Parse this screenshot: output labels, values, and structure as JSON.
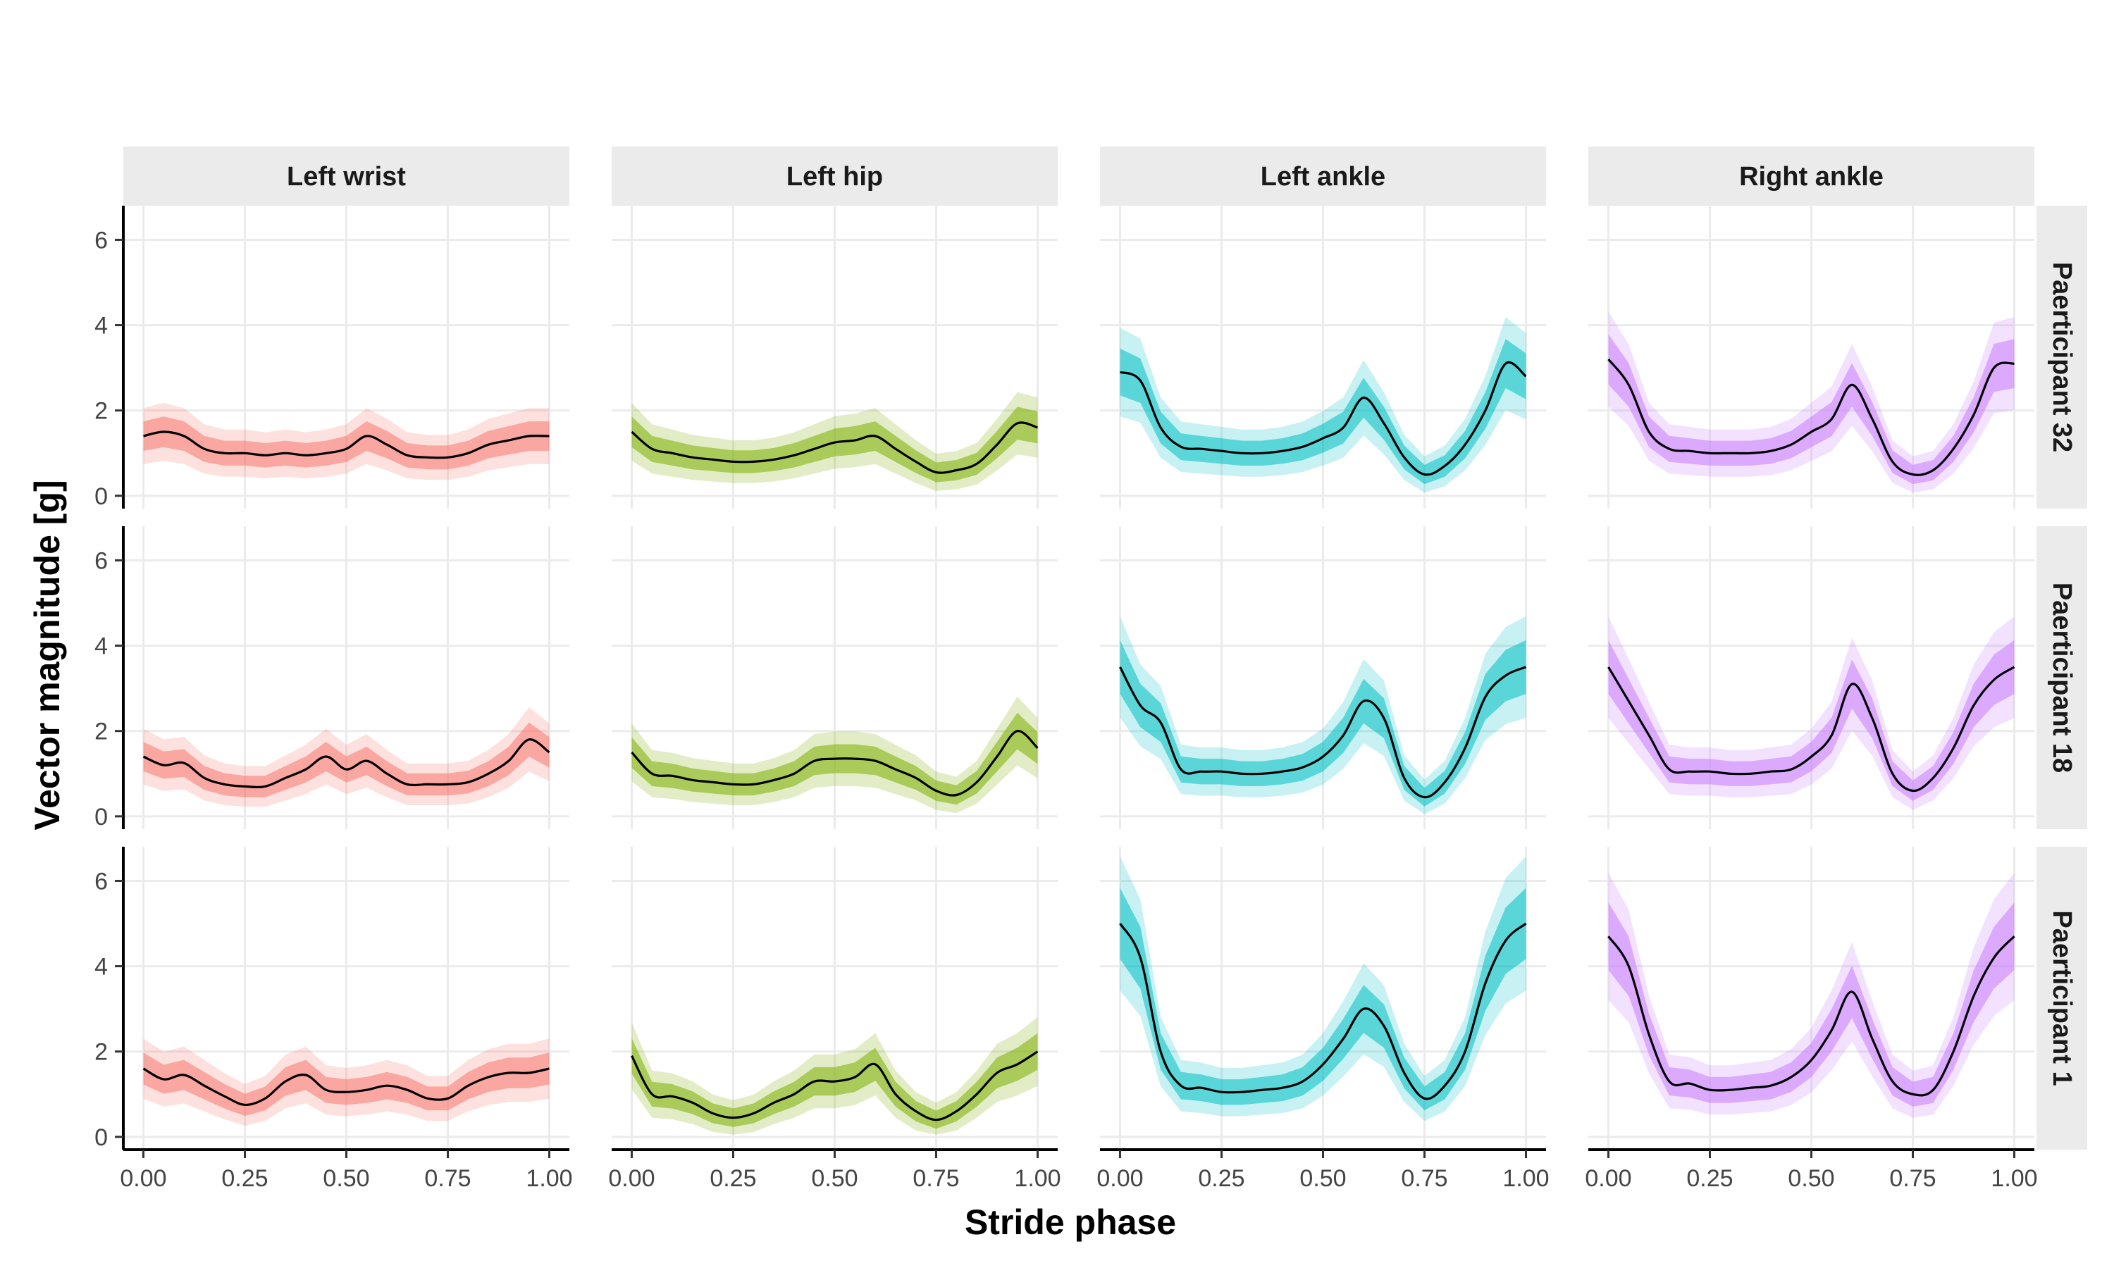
{
  "chart_data": {
    "type": "line",
    "xlabel": "Stride phase",
    "ylabel": "Vector magnitude [g]",
    "xlim": [
      0,
      1
    ],
    "ylim": [
      -0.3,
      6.8
    ],
    "x_ticks": [
      "0.00",
      "0.25",
      "0.50",
      "0.75",
      "1.00"
    ],
    "x_tick_values": [
      0,
      0.25,
      0.5,
      0.75,
      1.0
    ],
    "y_ticks": [
      "0",
      "2",
      "4",
      "6"
    ],
    "y_tick_values": [
      0,
      2,
      4,
      6
    ],
    "grid": true,
    "columns": [
      {
        "name": "Left wrist",
        "color": "#F8766D"
      },
      {
        "name": "Left hip",
        "color": "#7CAE00"
      },
      {
        "name": "Left ankle",
        "color": "#00BFC4"
      },
      {
        "name": "Right ankle",
        "color": "#C77CFF"
      }
    ],
    "rows": [
      "Paerticipant 32",
      "Paerticipant 18",
      "Paerticipant 1"
    ],
    "x": [
      0.0,
      0.05,
      0.1,
      0.15,
      0.2,
      0.25,
      0.3,
      0.35,
      0.4,
      0.45,
      0.5,
      0.55,
      0.6,
      0.65,
      0.7,
      0.75,
      0.8,
      0.85,
      0.9,
      0.95,
      1.0
    ],
    "mean_curves": [
      [
        [
          1.4,
          1.5,
          1.4,
          1.1,
          1.0,
          1.0,
          0.95,
          1.0,
          0.95,
          1.0,
          1.1,
          1.4,
          1.2,
          0.95,
          0.9,
          0.9,
          1.0,
          1.2,
          1.3,
          1.4,
          1.4
        ],
        [
          1.5,
          1.1,
          1.0,
          0.9,
          0.85,
          0.8,
          0.8,
          0.85,
          0.95,
          1.1,
          1.25,
          1.3,
          1.4,
          1.1,
          0.8,
          0.55,
          0.6,
          0.75,
          1.2,
          1.7,
          1.6
        ],
        [
          2.9,
          2.7,
          1.6,
          1.15,
          1.1,
          1.05,
          1.0,
          1.0,
          1.05,
          1.15,
          1.35,
          1.6,
          2.3,
          1.7,
          0.9,
          0.5,
          0.7,
          1.2,
          2.0,
          3.1,
          2.8
        ],
        [
          3.2,
          2.6,
          1.5,
          1.1,
          1.05,
          1.0,
          1.0,
          1.0,
          1.05,
          1.2,
          1.5,
          1.8,
          2.6,
          1.8,
          0.8,
          0.5,
          0.6,
          1.1,
          1.9,
          3.0,
          3.1
        ]
      ],
      [
        [
          1.4,
          1.2,
          1.25,
          0.9,
          0.75,
          0.7,
          0.7,
          0.9,
          1.1,
          1.4,
          1.1,
          1.3,
          1.0,
          0.75,
          0.75,
          0.75,
          0.8,
          1.0,
          1.3,
          1.8,
          1.5
        ],
        [
          1.5,
          1.0,
          0.95,
          0.85,
          0.8,
          0.75,
          0.75,
          0.85,
          1.0,
          1.3,
          1.35,
          1.35,
          1.3,
          1.1,
          0.9,
          0.6,
          0.5,
          0.8,
          1.4,
          2.0,
          1.6
        ],
        [
          3.5,
          2.6,
          2.2,
          1.1,
          1.05,
          1.05,
          1.0,
          1.0,
          1.05,
          1.15,
          1.4,
          1.9,
          2.7,
          2.3,
          0.9,
          0.45,
          0.8,
          1.6,
          2.8,
          3.3,
          3.5
        ],
        [
          3.5,
          2.7,
          1.9,
          1.1,
          1.05,
          1.05,
          1.0,
          1.0,
          1.05,
          1.1,
          1.4,
          1.9,
          3.1,
          2.3,
          1.0,
          0.6,
          0.9,
          1.6,
          2.6,
          3.2,
          3.5
        ]
      ],
      [
        [
          1.6,
          1.35,
          1.45,
          1.2,
          0.95,
          0.75,
          0.9,
          1.3,
          1.45,
          1.1,
          1.05,
          1.1,
          1.2,
          1.1,
          0.9,
          0.9,
          1.2,
          1.4,
          1.5,
          1.5,
          1.6
        ],
        [
          1.9,
          1.0,
          0.95,
          0.8,
          0.55,
          0.45,
          0.55,
          0.8,
          1.0,
          1.3,
          1.3,
          1.4,
          1.7,
          1.0,
          0.6,
          0.4,
          0.6,
          1.0,
          1.5,
          1.7,
          2.0
        ],
        [
          5.0,
          4.2,
          2.0,
          1.2,
          1.15,
          1.05,
          1.05,
          1.1,
          1.15,
          1.3,
          1.7,
          2.3,
          3.0,
          2.6,
          1.5,
          0.9,
          1.2,
          2.0,
          3.6,
          4.6,
          5.0
        ],
        [
          4.7,
          4.0,
          2.4,
          1.3,
          1.25,
          1.1,
          1.1,
          1.15,
          1.2,
          1.4,
          1.8,
          2.5,
          3.4,
          2.3,
          1.3,
          1.0,
          1.1,
          2.0,
          3.3,
          4.2,
          4.7
        ]
      ]
    ]
  }
}
